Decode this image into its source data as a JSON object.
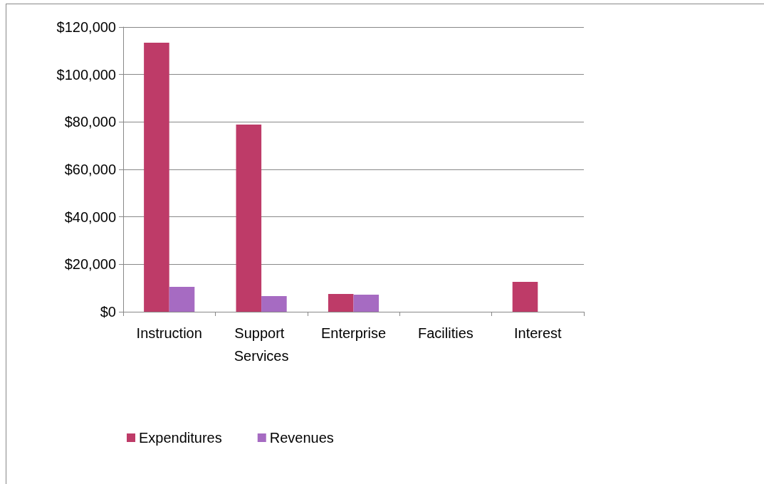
{
  "chart_data": {
    "type": "bar",
    "categories": [
      "Instruction",
      "Support Services",
      "Enterprise",
      "Facilities",
      "Interest"
    ],
    "series": [
      {
        "name": "Expenditures",
        "color": "#be3b68",
        "values": [
          113400,
          78900,
          7500,
          0,
          12600
        ]
      },
      {
        "name": "Revenues",
        "color": "#a66bc2",
        "values": [
          10500,
          6600,
          7200,
          0,
          0
        ]
      }
    ],
    "ylim": [
      0,
      120000
    ],
    "yticks": [
      {
        "value": 0,
        "label": "$0"
      },
      {
        "value": 20000,
        "label": "$20,000"
      },
      {
        "value": 40000,
        "label": "$40,000"
      },
      {
        "value": 60000,
        "label": "$60,000"
      },
      {
        "value": 80000,
        "label": "$80,000"
      },
      {
        "value": 100000,
        "label": "$100,000"
      },
      {
        "value": 120000,
        "label": "$120,000"
      }
    ],
    "grid": "y",
    "legend": "bottom"
  }
}
